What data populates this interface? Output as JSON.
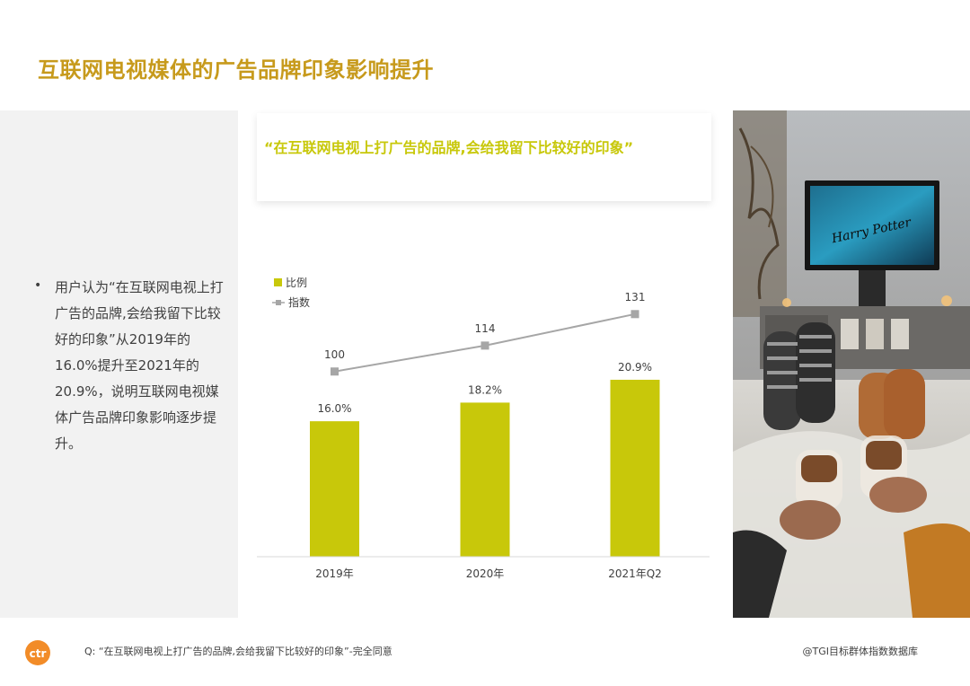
{
  "page": {
    "title": "互联网电视媒体的广告品牌印象影响提升",
    "quote": "“在互联网电视上打广告的品牌,会给我留下比较好的印象”",
    "bullet": "用户认为“在互联网电视上打广告的品牌,会给我留下比较好的印象”从2019年的16.0%提升至2021年的20.9%，说明互联网电视媒体广告品牌印象影响逐步提升。",
    "photo_tv_text": "Harry Potter",
    "footer_question": "Q:  “在互联网电视上打广告的品牌,会给我留下比较好的印象”-完全同意",
    "footer_source": "@TGI目标群体指数数据库",
    "logo_text": "ctr"
  },
  "chart_data": {
    "type": "bar",
    "categories": [
      "2019年",
      "2020年",
      "2021年Q2"
    ],
    "series": [
      {
        "name": "比例",
        "type": "bar",
        "values": [
          16.0,
          18.2,
          20.9
        ],
        "labels": [
          "16.0%",
          "18.2%",
          "20.9%"
        ],
        "color": "#c8c80a"
      },
      {
        "name": "指数",
        "type": "line",
        "values": [
          100,
          114,
          131
        ],
        "labels": [
          "100",
          "114",
          "131"
        ],
        "color": "#a6a6a6"
      }
    ],
    "legend": "top-left",
    "bar_ylim": [
      0,
      35
    ],
    "line_ylim": [
      0,
      160
    ],
    "grid": false
  }
}
